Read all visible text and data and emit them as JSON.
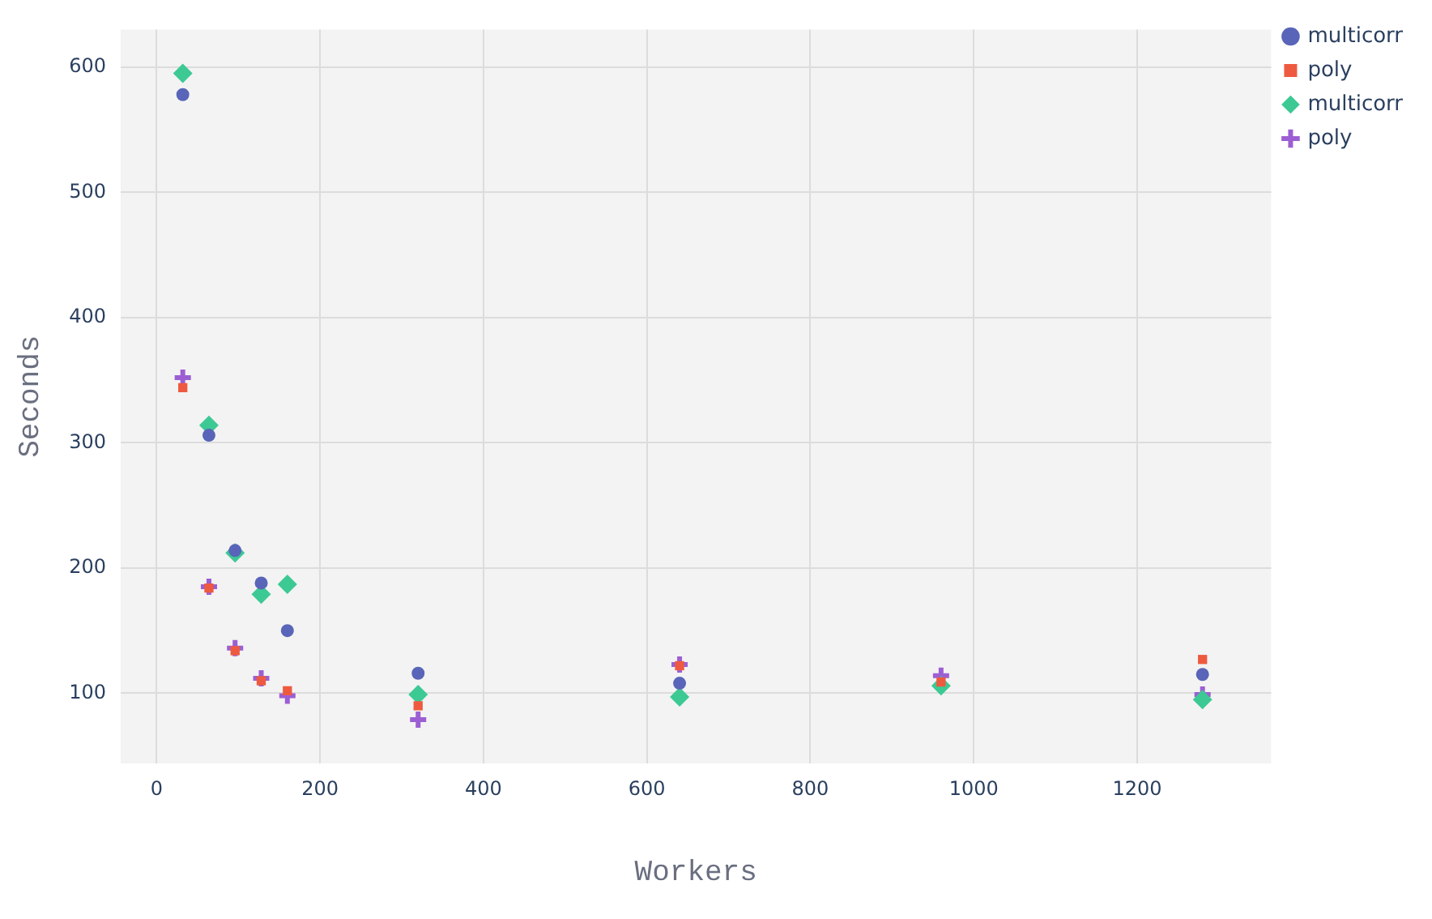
{
  "chart_data": {
    "type": "scatter",
    "xlabel": "Workers",
    "ylabel": "Seconds",
    "x": [
      32,
      64,
      96,
      128,
      160,
      320,
      640,
      960,
      1280
    ],
    "series": [
      {
        "name": "multicorr",
        "color": "#5965b8",
        "marker": "circle",
        "values": [
          578,
          306,
          214,
          188,
          150,
          116,
          108,
          null,
          115
        ]
      },
      {
        "name": "poly",
        "color": "#ee5a3f",
        "marker": "square",
        "values": [
          344,
          184,
          134,
          110,
          102,
          90,
          122,
          109,
          127
        ]
      },
      {
        "name": "multicorr",
        "color": "#3dc994",
        "marker": "diamond",
        "values": [
          595,
          314,
          212,
          179,
          187,
          99,
          97,
          106,
          95
        ]
      },
      {
        "name": "poly",
        "color": "#9c5fd3",
        "marker": "cross",
        "values": [
          352,
          185,
          136,
          112,
          98,
          79,
          123,
          114,
          99
        ]
      }
    ],
    "xlim": [
      -44,
      1364
    ],
    "xticks": [
      0,
      200,
      400,
      600,
      800,
      1000,
      1200
    ],
    "ylim": [
      44,
      630
    ],
    "yticks": [
      100,
      200,
      300,
      400,
      500,
      600
    ],
    "grid": true,
    "legend": "top right"
  }
}
